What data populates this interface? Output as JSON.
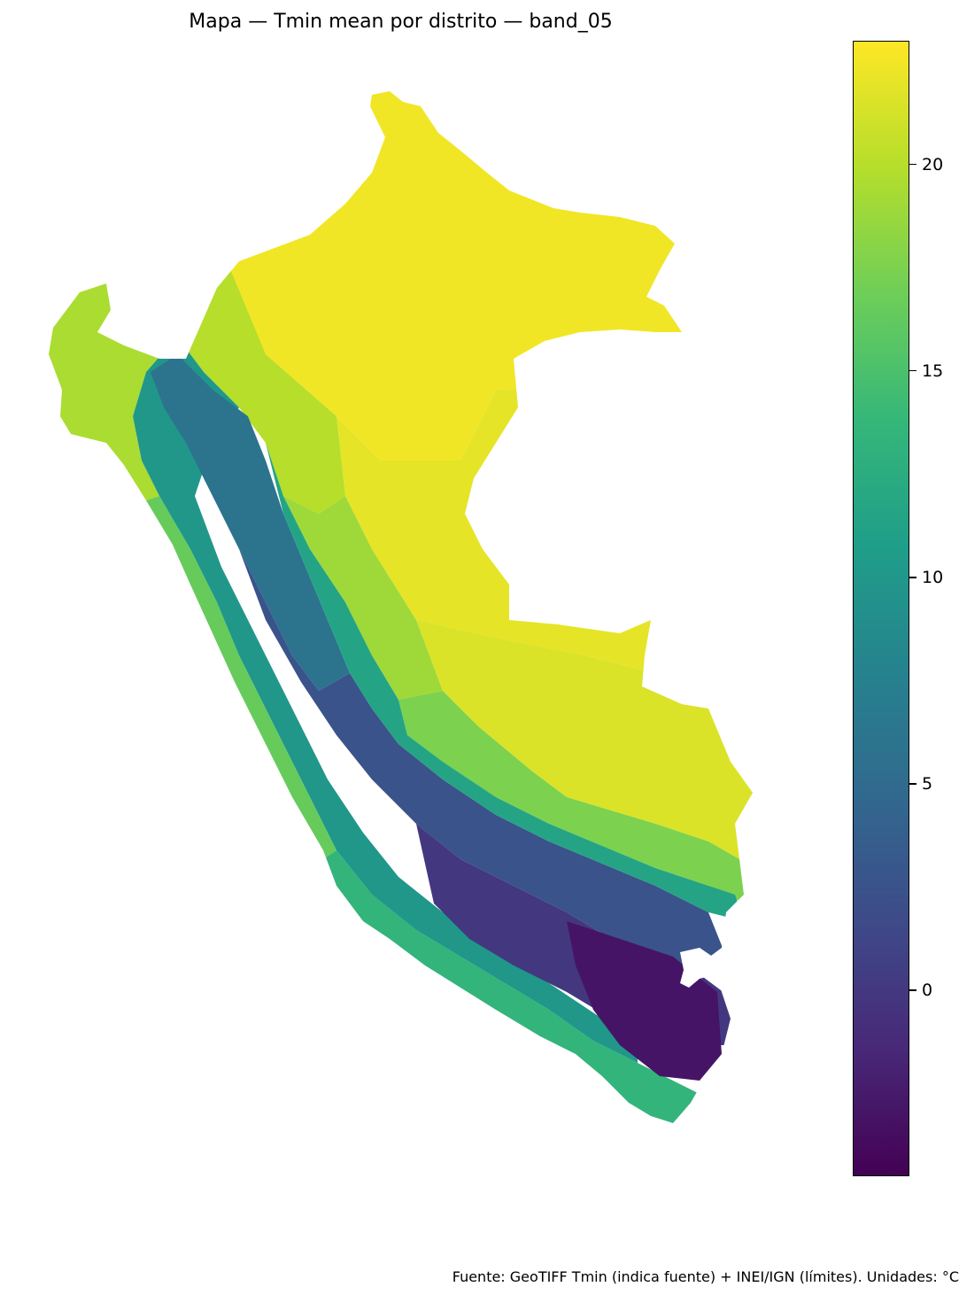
{
  "title": "Mapa — Tmin mean por distrito — band_05",
  "footer": "Fuente: GeoTIFF Tmin (indica fuente) + INEI/IGN (límites). Unidades: °C",
  "colorbar": {
    "min": -4.5,
    "max": 23,
    "ticks": [
      {
        "value": 20,
        "label": "20"
      },
      {
        "value": 15,
        "label": "15"
      },
      {
        "value": 10,
        "label": "10"
      },
      {
        "value": 5,
        "label": "5"
      },
      {
        "value": 0,
        "label": "0"
      }
    ],
    "colormap": [
      "#440154",
      "#482878",
      "#3e4a89",
      "#31688e",
      "#26828e",
      "#1f9e89",
      "#35b779",
      "#6ece58",
      "#b5de2b",
      "#fde725"
    ]
  },
  "chart_data": {
    "type": "choropleth",
    "title": "Mapa — Tmin mean por distrito — band_05",
    "colorbar_range": [
      -4.5,
      23
    ],
    "colorbar_ticks": [
      20,
      15,
      10,
      5,
      0
    ],
    "regions": [
      {
        "id": "amazon-north",
        "value": 22.5
      },
      {
        "id": "amazon-central",
        "value": 22.0
      },
      {
        "id": "amazon-south",
        "value": 21.5
      },
      {
        "id": "selva-alta-north",
        "value": 20.0
      },
      {
        "id": "selva-alta-central",
        "value": 19.0
      },
      {
        "id": "selva-alta-south",
        "value": 17.5
      },
      {
        "id": "coast-north",
        "value": 19.5
      },
      {
        "id": "coast-central",
        "value": 16.5
      },
      {
        "id": "coast-south",
        "value": 13.5
      },
      {
        "id": "andes-west-slope",
        "value": 10.0
      },
      {
        "id": "andes-north-highland",
        "value": 6.0
      },
      {
        "id": "andes-central-highland",
        "value": 2.5
      },
      {
        "id": "andes-east-slope",
        "value": 11.5
      },
      {
        "id": "altiplano-south",
        "value": 0.0
      },
      {
        "id": "altiplano-core",
        "value": -3.0
      }
    ]
  }
}
